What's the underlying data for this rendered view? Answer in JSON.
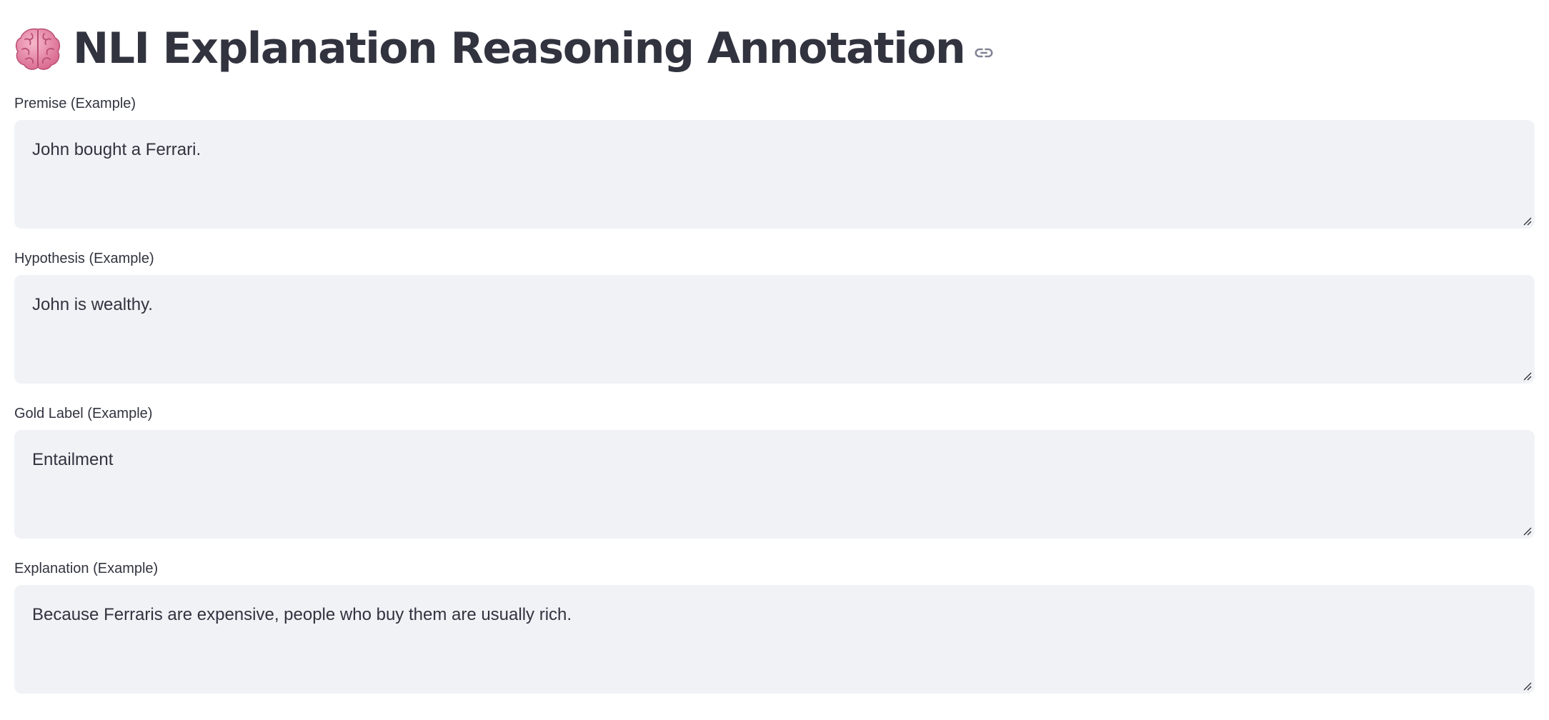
{
  "header": {
    "title": "NLI Explanation Reasoning Annotation",
    "emoji": "brain-icon"
  },
  "fields": [
    {
      "label": "Premise (Example)",
      "value": "John bought a Ferrari."
    },
    {
      "label": "Hypothesis (Example)",
      "value": "John is wealthy."
    },
    {
      "label": "Gold Label (Example)",
      "value": "Entailment"
    },
    {
      "label": "Explanation (Example)",
      "value": "Because Ferraris are expensive, people who buy them are usually rich."
    }
  ],
  "colors": {
    "text": "#31333f",
    "field_background": "#f0f2f6",
    "brain_pink": "#e88aa8"
  }
}
